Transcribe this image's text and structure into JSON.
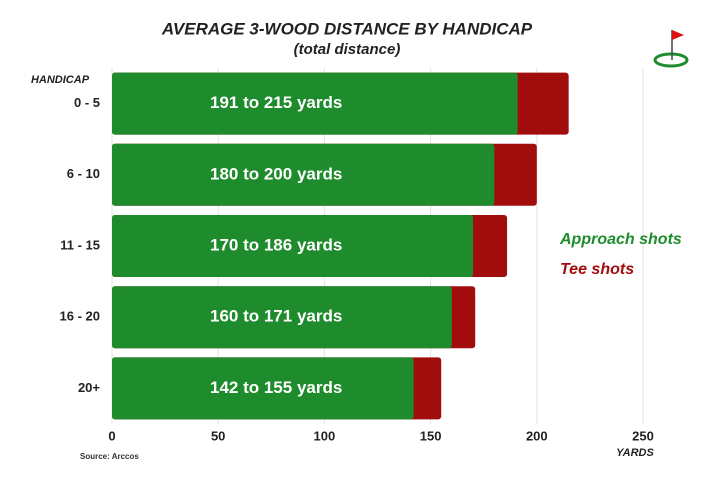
{
  "chart_data": {
    "type": "bar",
    "orientation": "horizontal",
    "title": "AVERAGE  3-WOOD DISTANCE BY HANDICAP",
    "subtitle": "(total distance)",
    "y_label": "HANDICAP",
    "x_label": "YARDS",
    "source": "Source: Arccos",
    "categories": [
      "0 - 5",
      "6 - 10",
      "11 - 15",
      "16 - 20",
      "20+"
    ],
    "series": [
      {
        "name": "Tee shots",
        "color": "#a10d0d",
        "values": [
          215,
          200,
          186,
          171,
          155
        ]
      },
      {
        "name": "Approach shots",
        "color": "#1e8c2c",
        "values": [
          191,
          180,
          170,
          160,
          142
        ],
        "value_labels": [
          "191 to 215 yards",
          "180 to 200 yards",
          "170 to 186 yards",
          "160 to 171 yards",
          "142 to 155 yards"
        ]
      }
    ],
    "xlim": [
      0,
      250
    ],
    "xticks": [
      0,
      50,
      100,
      150,
      200,
      250
    ],
    "grid": true,
    "legend": "right"
  }
}
